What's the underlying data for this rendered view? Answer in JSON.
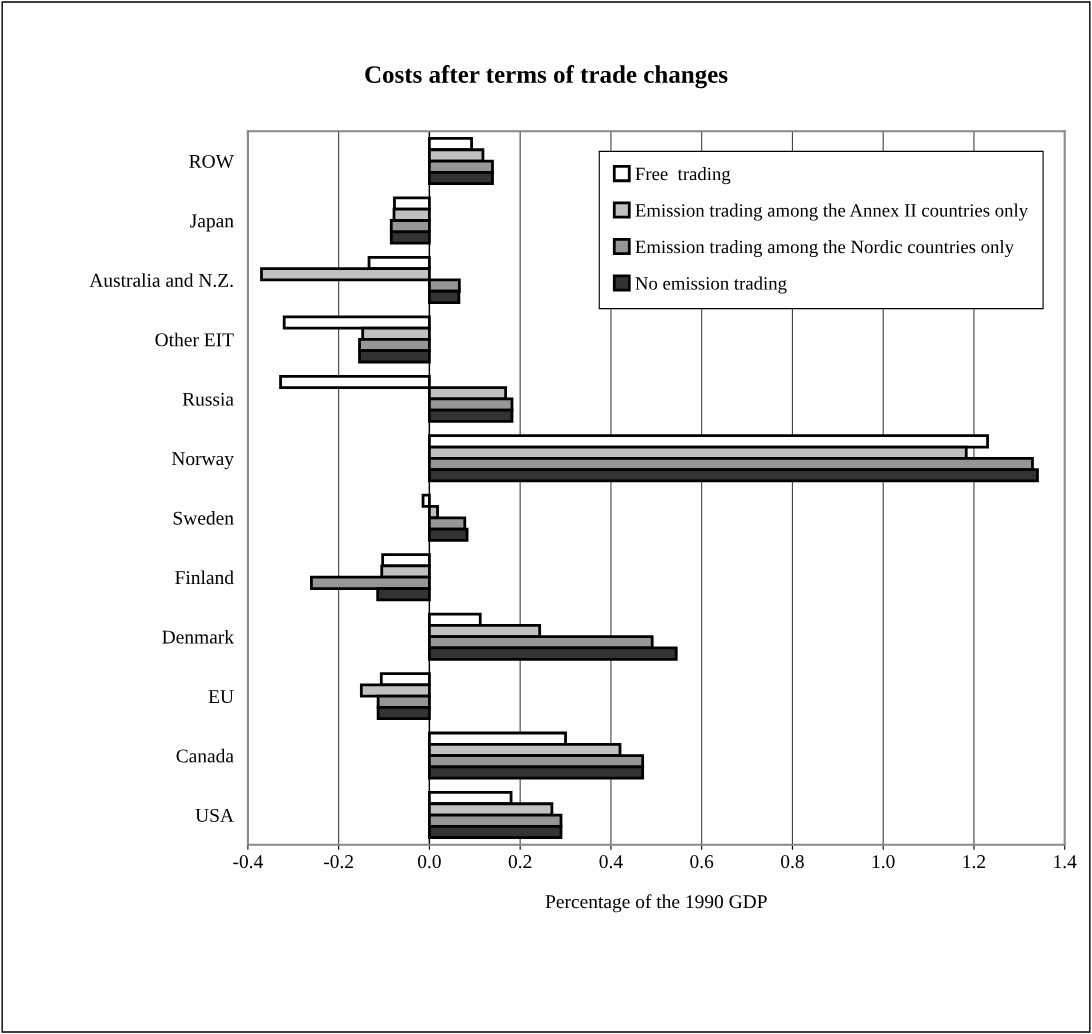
{
  "chart_data": {
    "type": "bar",
    "orientation": "horizontal",
    "title": "Costs after terms of trade changes",
    "xlabel": "Percentage of the 1990 GDP",
    "categories": [
      "ROW",
      "Japan",
      "Australia and N.Z.",
      "Other EIT",
      "Russia",
      "Norway",
      "Sweden",
      "Finland",
      "Denmark",
      "EU",
      "Canada",
      "USA"
    ],
    "series": [
      {
        "name": "Free  trading",
        "color": "#ffffff",
        "values": [
          0.093,
          -0.077,
          -0.133,
          -0.32,
          -0.328,
          1.23,
          -0.014,
          -0.103,
          0.112,
          -0.106,
          0.3,
          0.18
        ]
      },
      {
        "name": "Emission trading among the Annex II countries only",
        "color": "#c0c0c0",
        "values": [
          0.118,
          -0.078,
          -0.37,
          -0.147,
          0.168,
          1.183,
          0.018,
          -0.105,
          0.243,
          -0.15,
          0.42,
          0.27
        ]
      },
      {
        "name": "Emission trading among the Nordic countries only",
        "color": "#969696",
        "values": [
          0.139,
          -0.084,
          0.066,
          -0.154,
          0.182,
          1.329,
          0.078,
          -0.26,
          0.491,
          -0.113,
          0.47,
          0.29
        ]
      },
      {
        "name": "No emission trading",
        "color": "#333333",
        "values": [
          0.139,
          -0.084,
          0.065,
          -0.154,
          0.182,
          1.34,
          0.083,
          -0.114,
          0.544,
          -0.113,
          0.47,
          0.29
        ]
      }
    ],
    "xlim": [
      -0.4,
      1.4
    ],
    "xticks": [
      -0.4,
      -0.2,
      {
        "value": 0,
        "label": "0.0"
      },
      0.2,
      0.4,
      0.6,
      0.8,
      {
        "value": 1,
        "label": "1.0"
      },
      1.2,
      1.4
    ],
    "grid": "x",
    "legend": "top right"
  }
}
